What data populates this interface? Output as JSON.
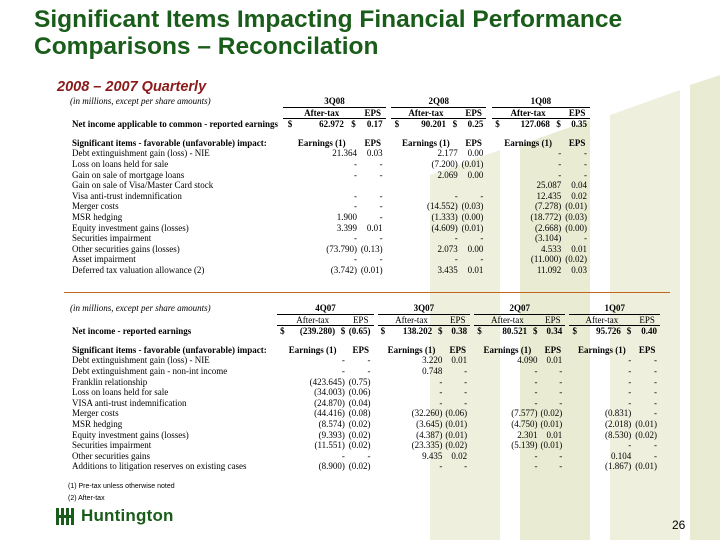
{
  "title": "Significant Items Impacting Financial Performance Comparisons – Reconcilation",
  "subtitle": "2008 – 2007 Quarterly",
  "table1": {
    "unit_note": "(in millions, except per share amounts)",
    "periods": [
      "3Q08",
      "2Q08",
      "1Q08"
    ],
    "sub_headers": {
      "after_tax": "After-tax",
      "eps": "EPS"
    },
    "net_income": {
      "label": "Net income applicable to common - reported earnings",
      "values": [
        {
          "cur": "$",
          "at": "62.972",
          "cur2": "$",
          "eps": "0.17"
        },
        {
          "cur": "$",
          "at": "90.201",
          "cur2": "$",
          "eps": "0.25"
        },
        {
          "cur": "$",
          "at": "127.068",
          "cur2": "$",
          "eps": "0.35"
        }
      ]
    },
    "sig_header": {
      "label": "Significant items - favorable (unfavorable) impact:",
      "earnings": "Earnings (1)",
      "eps": "EPS"
    },
    "rows": [
      {
        "label": "Debt extinguishment gain (loss) - NIE",
        "v": [
          "21.364",
          "0.03",
          "2.177",
          "0.00",
          "-",
          "-"
        ]
      },
      {
        "label": "Loss on loans held for sale",
        "v": [
          "-",
          "-",
          "(7.200)",
          "(0.01)",
          "-",
          "-"
        ]
      },
      {
        "label": "Gain on sale of mortgage loans",
        "v": [
          "-",
          "-",
          "2.069",
          "0.00",
          "-",
          "-"
        ]
      },
      {
        "label": "Gain on sale of Visa/Master Card stock",
        "v": [
          "",
          "",
          "",
          "",
          "25.087",
          "0.04"
        ]
      },
      {
        "label": "Visa anti-trust indemnification",
        "v": [
          "-",
          "-",
          "-",
          "-",
          "12.435",
          "0.02"
        ]
      },
      {
        "label": "Merger costs",
        "v": [
          "-",
          "-",
          "(14.552)",
          "(0.03)",
          "(7.278)",
          "(0.01)"
        ]
      },
      {
        "label": "MSR hedging",
        "v": [
          "1.900",
          "-",
          "(1.333)",
          "(0.00)",
          "(18.772)",
          "(0.03)"
        ]
      },
      {
        "label": "Equity investment gains (losses)",
        "v": [
          "3.399",
          "0.01",
          "(4.609)",
          "(0.01)",
          "(2.668)",
          "(0.00)"
        ]
      },
      {
        "label": "Securities impairment",
        "v": [
          "-",
          "-",
          "-",
          "-",
          "(3.104)",
          "-"
        ]
      },
      {
        "label": "Other securities gains (losses)",
        "v": [
          "(73.790)",
          "(0.13)",
          "2.073",
          "0.00",
          "4.533",
          "0.01"
        ]
      },
      {
        "label": "Asset impairment",
        "v": [
          "-",
          "-",
          "-",
          "-",
          "(11.000)",
          "(0.02)"
        ]
      },
      {
        "label": "Deferred tax valuation allowance (2)",
        "v": [
          "(3.742)",
          "(0.01)",
          "3.435",
          "0.01",
          "11.092",
          "0.03"
        ]
      }
    ]
  },
  "table2": {
    "unit_note": "(in millions, except per share amounts)",
    "periods": [
      "4Q07",
      "3Q07",
      "2Q07",
      "1Q07"
    ],
    "sub_headers": {
      "after_tax": "After-tax",
      "eps": "EPS"
    },
    "net_income": {
      "label": "Net income - reported earnings",
      "values": [
        {
          "cur": "$",
          "at": "(239.280)",
          "cur2": "$",
          "eps": "(0.65)"
        },
        {
          "cur": "$",
          "at": "138.202",
          "cur2": "$",
          "eps": "0.38"
        },
        {
          "cur": "$",
          "at": "80.521",
          "cur2": "$",
          "eps": "0.34"
        },
        {
          "cur": "$",
          "at": "95.726",
          "cur2": "$",
          "eps": "0.40"
        }
      ]
    },
    "sig_header": {
      "label": "Significant items - favorable (unfavorable) impact:",
      "earnings": "Earnings (1)",
      "eps": "EPS"
    },
    "rows": [
      {
        "label": "Debt extinguishment gain (loss) - NIE",
        "v": [
          "-",
          "-",
          "3.220",
          "0.01",
          "4.090",
          "0.01",
          "-",
          "-"
        ]
      },
      {
        "label": "Debt extinguishment gain - non-int income",
        "v": [
          "-",
          "-",
          "0.748",
          "-",
          "-",
          "-",
          "-",
          "-"
        ]
      },
      {
        "label": "Franklin relationship",
        "v": [
          "(423.645)",
          "(0.75)",
          "-",
          "-",
          "-",
          "-",
          "-",
          "-"
        ]
      },
      {
        "label": "Loss on loans held for sale",
        "v": [
          "(34.003)",
          "(0.06)",
          "-",
          "-",
          "-",
          "-",
          "-",
          "-"
        ]
      },
      {
        "label": "VISA anti-trust indemnification",
        "v": [
          "(24.870)",
          "(0.04)",
          "-",
          "-",
          "-",
          "-",
          "-",
          "-"
        ]
      },
      {
        "label": "Merger costs",
        "v": [
          "(44.416)",
          "(0.08)",
          "(32.260)",
          "(0.06)",
          "(7.577)",
          "(0.02)",
          "(0.831)",
          "-"
        ]
      },
      {
        "label": "MSR hedging",
        "v": [
          "(8.574)",
          "(0.02)",
          "(3.645)",
          "(0.01)",
          "(4.750)",
          "(0.01)",
          "(2.018)",
          "(0.01)"
        ]
      },
      {
        "label": "Equity investment gains (losses)",
        "v": [
          "(9.393)",
          "(0.02)",
          "(4.387)",
          "(0.01)",
          "2.301",
          "0.01",
          "(8.530)",
          "(0.02)"
        ]
      },
      {
        "label": "Securities impairment",
        "v": [
          "(11.551)",
          "(0.02)",
          "(23.335)",
          "(0.02)",
          "(5.139)",
          "(0.01)",
          "-",
          "-"
        ]
      },
      {
        "label": "Other securities gains",
        "v": [
          "-",
          "-",
          "9.435",
          "0.02",
          "-",
          "-",
          "0.104",
          "-"
        ]
      },
      {
        "label": "Additions to litigation reserves on existing cases",
        "v": [
          "(8.900)",
          "(0.02)",
          "-",
          "-",
          "-",
          "-",
          "(1.867)",
          "(0.01)"
        ]
      }
    ]
  },
  "footnotes": [
    "(1) Pre-tax unless otherwise noted",
    "(2) After-tax"
  ],
  "logo_text": "Huntington",
  "page_number": "26",
  "colors": {
    "title": "#1a5c1a",
    "subtitle": "#8b1a1a",
    "divider": "#c0651c",
    "watermark": "#e9ecd2"
  }
}
